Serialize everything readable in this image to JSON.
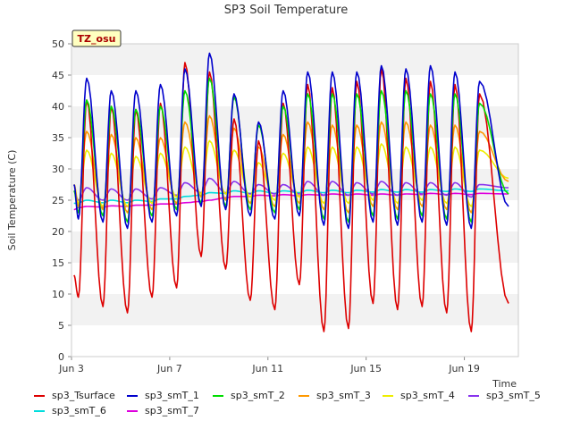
{
  "chart_data": {
    "type": "line",
    "title": "SP3 Soil Temperature",
    "xlabel": "Time",
    "ylabel": "Soil Temperature (C)",
    "badge": "TZ_osu",
    "xlim": [
      3,
      21.2
    ],
    "ylim": [
      0,
      50
    ],
    "yticks": [
      0,
      5,
      10,
      15,
      20,
      25,
      30,
      35,
      40,
      45,
      50
    ],
    "xticks": [
      {
        "day": 3,
        "label": "Jun 3"
      },
      {
        "day": 7,
        "label": "Jun 7"
      },
      {
        "day": 11,
        "label": "Jun 11"
      },
      {
        "day": 15,
        "label": "Jun 15"
      },
      {
        "day": 19,
        "label": "Jun 19"
      }
    ],
    "grid": "horizontal-bands",
    "legend_position": "bottom",
    "days": [
      3,
      4,
      5,
      6,
      7,
      8,
      9,
      10,
      11,
      12,
      13,
      14,
      15,
      16,
      17,
      18,
      19,
      20,
      21
    ],
    "series": [
      {
        "name": "sp3_Tsurface",
        "color": "#dd0000",
        "start": 13,
        "end": 8.5,
        "max": [
          41.0,
          40.0,
          39.5,
          40.5,
          47.0,
          45.5,
          38.0,
          34.5,
          40.5,
          43.5,
          43.0,
          44.0,
          46.0,
          44.5,
          44.0,
          43.5,
          42.0
        ],
        "min": [
          9.5,
          8.0,
          7.0,
          9.5,
          11.0,
          16.0,
          14.0,
          9.0,
          7.5,
          11.5,
          4.0,
          4.5,
          8.5,
          7.5,
          8.0,
          7.0,
          4.0
        ]
      },
      {
        "name": "sp3_smT_1",
        "color": "#0000cc",
        "start": 27.5,
        "end": 24.0,
        "max": [
          44.5,
          42.5,
          42.5,
          43.5,
          46.0,
          48.5,
          42.0,
          37.5,
          42.5,
          45.5,
          45.5,
          45.5,
          46.5,
          46.0,
          46.5,
          45.5,
          44.0
        ],
        "min": [
          22.0,
          21.5,
          20.5,
          21.5,
          22.5,
          24.0,
          23.5,
          22.5,
          22.0,
          22.5,
          21.0,
          20.5,
          21.5,
          21.0,
          21.5,
          21.0,
          20.5
        ]
      },
      {
        "name": "sp3_smT_2",
        "color": "#00dd00",
        "start": 26.5,
        "end": 26.0,
        "max": [
          41.0,
          40.0,
          39.5,
          40.0,
          42.5,
          44.5,
          41.5,
          37.0,
          40.0,
          42.0,
          42.0,
          42.0,
          42.5,
          42.5,
          42.0,
          42.0,
          40.5
        ],
        "min": [
          23.0,
          22.5,
          21.5,
          22.5,
          23.5,
          24.5,
          24.0,
          23.5,
          23.0,
          23.5,
          22.0,
          21.5,
          22.5,
          22.0,
          22.5,
          22.0,
          21.5
        ]
      },
      {
        "name": "sp3_smT_3",
        "color": "#ff9900",
        "start": 27.5,
        "end": 28.0,
        "max": [
          36.0,
          35.5,
          35.0,
          35.0,
          37.5,
          38.5,
          36.5,
          33.5,
          35.5,
          37.5,
          37.0,
          37.0,
          37.5,
          37.5,
          37.0,
          37.0,
          36.0
        ],
        "min": [
          24.0,
          23.5,
          23.0,
          23.5,
          24.5,
          25.5,
          25.0,
          24.5,
          24.0,
          24.5,
          23.5,
          23.0,
          24.0,
          23.5,
          24.0,
          23.5,
          23.0
        ]
      },
      {
        "name": "sp3_smT_4",
        "color": "#eeee00",
        "start": 27.5,
        "end": 28.5,
        "max": [
          33.0,
          32.5,
          32.0,
          32.5,
          33.5,
          34.5,
          33.0,
          31.0,
          32.5,
          33.5,
          33.5,
          33.5,
          34.0,
          33.5,
          33.5,
          33.5,
          33.0
        ],
        "min": [
          24.5,
          24.0,
          24.0,
          24.5,
          25.5,
          26.0,
          26.0,
          25.5,
          25.0,
          25.5,
          24.5,
          24.5,
          25.0,
          24.5,
          25.0,
          24.5,
          24.0
        ]
      },
      {
        "name": "sp3_smT_5",
        "color": "#8833ee",
        "start": 26.5,
        "end": 27.0,
        "max": [
          27.0,
          26.8,
          26.8,
          27.0,
          27.8,
          28.5,
          28.0,
          27.5,
          27.5,
          28.0,
          28.0,
          27.8,
          28.0,
          27.8,
          27.8,
          27.8,
          27.5
        ],
        "min": [
          25.0,
          25.0,
          25.0,
          25.2,
          25.8,
          26.2,
          26.2,
          26.0,
          26.0,
          26.0,
          25.8,
          25.8,
          26.0,
          25.8,
          26.0,
          25.8,
          25.5
        ]
      },
      {
        "name": "sp3_smT_6",
        "color": "#00dddd",
        "start": 24.5,
        "end": 26.5,
        "max": [
          25.0,
          25.0,
          25.0,
          25.2,
          25.6,
          26.2,
          26.5,
          26.5,
          26.5,
          26.6,
          26.6,
          26.6,
          26.7,
          26.7,
          26.7,
          26.8,
          26.8
        ],
        "min": [
          24.6,
          24.6,
          24.6,
          24.8,
          25.2,
          25.8,
          26.1,
          26.1,
          26.1,
          26.2,
          26.2,
          26.2,
          26.3,
          26.3,
          26.3,
          26.4,
          26.4
        ]
      },
      {
        "name": "sp3_smT_7",
        "color": "#dd00dd",
        "start": 23.5,
        "end": 26.0,
        "max": [
          24.0,
          24.1,
          24.2,
          24.4,
          24.6,
          25.0,
          25.6,
          25.8,
          25.9,
          25.9,
          26.0,
          26.0,
          26.0,
          26.0,
          26.1,
          26.1,
          26.1
        ],
        "min": [
          23.8,
          23.9,
          24.0,
          24.2,
          24.4,
          24.8,
          25.4,
          25.6,
          25.7,
          25.7,
          25.8,
          25.8,
          25.8,
          25.8,
          25.9,
          25.9,
          25.9
        ]
      }
    ]
  }
}
